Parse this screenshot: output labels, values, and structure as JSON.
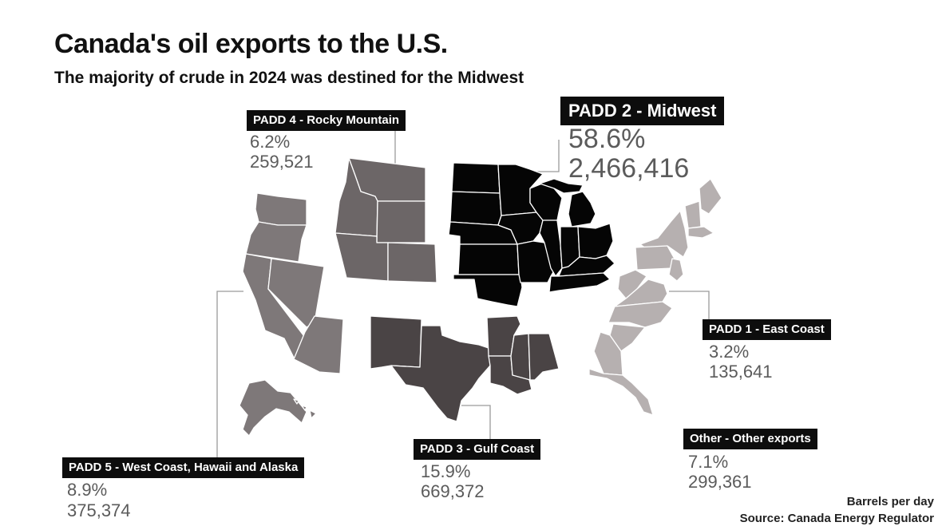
{
  "title": "Canada's oil exports to the U.S.",
  "subtitle": "The majority of crude in 2024 was destined for the Midwest",
  "colors": {
    "padd2": "#050505",
    "padd3": "#4a4445",
    "padd4": "#6c6667",
    "padd5": "#7e7879",
    "padd1": "#b6b0b0",
    "state_border": "#ffffff",
    "label_bg": "#0d0d0d",
    "stat_text": "#5b5b5b"
  },
  "regions": {
    "padd4": {
      "label": "PADD 4 - Rocky Mountain",
      "percent": "6.2%",
      "barrels": "259,521"
    },
    "padd2": {
      "label": "PADD 2 - Midwest",
      "percent": "58.6%",
      "barrels": "2,466,416"
    },
    "padd5": {
      "label": "PADD 5 - West Coast, Hawaii and Alaska",
      "percent": "8.9%",
      "barrels": "375,374"
    },
    "padd3": {
      "label": "PADD 3 - Gulf Coast",
      "percent": "15.9%",
      "barrels": "669,372"
    },
    "padd1": {
      "label": "PADD 1 - East Coast",
      "percent": "3.2%",
      "barrels": "135,641"
    },
    "other": {
      "label": "Other - Other exports",
      "percent": "7.1%",
      "barrels": "299,361"
    }
  },
  "footer": {
    "units": "Barrels per day",
    "source": "Source: Canada Energy Regulator"
  }
}
